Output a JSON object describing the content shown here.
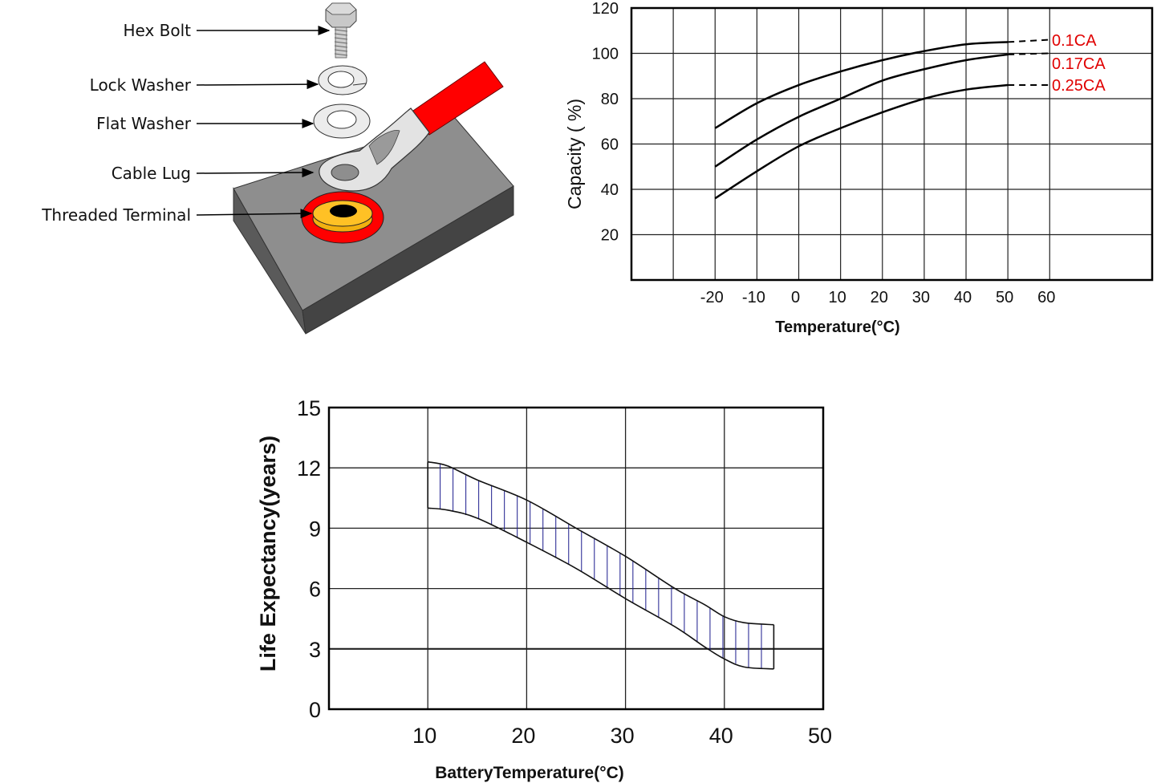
{
  "diagram": {
    "labels": [
      "Hex Bolt",
      "Lock Washer",
      "Flat Washer",
      "Cable Lug",
      "Threaded Terminal"
    ],
    "colors": {
      "block_top": "#8c8c8c",
      "block_side": "#4a4a4a",
      "cable": "#ff0000",
      "terminal_ring": "#ff0000",
      "terminal": "#ffc125",
      "metal": "#e6e6e6"
    }
  },
  "chart_data": [
    {
      "type": "line",
      "title": "",
      "xlabel": "Temperature(°C)",
      "ylabel": "Capacity ( %)",
      "xlim": [
        -40,
        84.5
      ],
      "ylim": [
        0,
        120
      ],
      "grid": true,
      "x_ticks": [
        "-20",
        "-10",
        "0",
        "10",
        "20",
        "30",
        "40",
        "50",
        "60"
      ],
      "y_ticks": [
        "20",
        "40",
        "60",
        "80",
        "100",
        "120"
      ],
      "series_label_color": "#e00000",
      "series": [
        {
          "name": "0.1CA",
          "x": [
            -20,
            -10,
            0,
            10,
            20,
            30,
            40,
            50
          ],
          "y": [
            67,
            78,
            86,
            92,
            97,
            101,
            104,
            105
          ],
          "extrapolated_to": [
            60,
            106
          ]
        },
        {
          "name": "0.17CA",
          "x": [
            -20,
            -10,
            0,
            10,
            20,
            30,
            40,
            50
          ],
          "y": [
            50,
            62,
            72,
            80,
            88,
            93,
            97,
            99.5
          ],
          "extrapolated_to": [
            60,
            100
          ]
        },
        {
          "name": "0.25CA",
          "x": [
            -20,
            -10,
            0,
            10,
            20,
            30,
            40,
            50
          ],
          "y": [
            36,
            48,
            59,
            67,
            74,
            80,
            84,
            86
          ],
          "extrapolated_to": [
            60,
            86
          ]
        }
      ]
    },
    {
      "type": "area",
      "title": "",
      "xlabel": "BatteryTemperature(°C)",
      "ylabel": "Life Expectancy(years)",
      "xlim": [
        0,
        50
      ],
      "ylim": [
        0,
        15
      ],
      "grid": true,
      "x_ticks": [
        "10",
        "20",
        "30",
        "40",
        "50"
      ],
      "y_ticks": [
        "0",
        "3",
        "6",
        "9",
        "12",
        "15"
      ],
      "hatch_color": "#1a1a8c",
      "band": {
        "x": [
          10,
          12,
          15,
          20,
          25,
          30,
          35,
          38,
          40,
          42,
          45
        ],
        "upper": [
          12.3,
          12.1,
          11.4,
          10.4,
          9.0,
          7.6,
          6.0,
          5.2,
          4.6,
          4.3,
          4.2
        ],
        "lower": [
          10.0,
          9.9,
          9.5,
          8.3,
          7.0,
          5.5,
          4.1,
          3.1,
          2.5,
          2.1,
          2.0
        ]
      }
    }
  ]
}
